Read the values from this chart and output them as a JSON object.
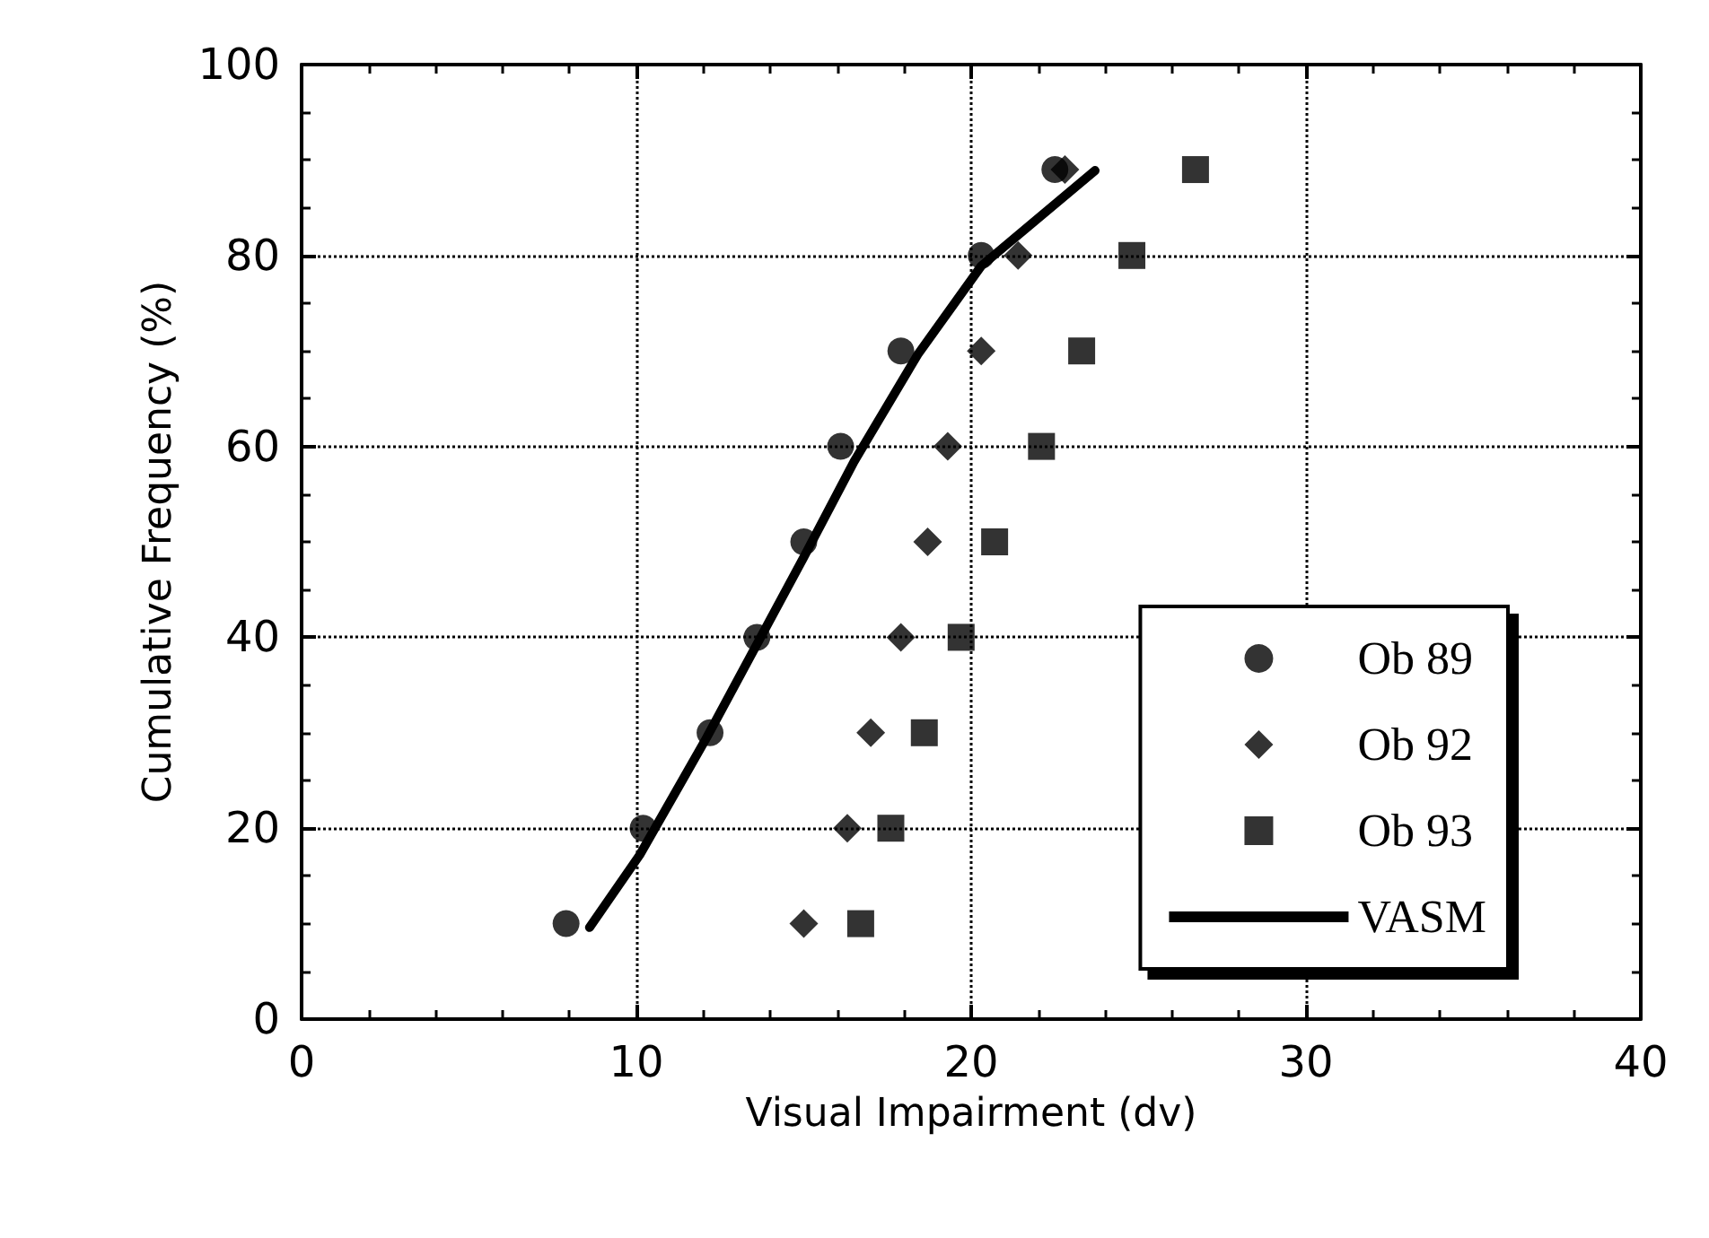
{
  "chart_data": {
    "type": "scatter",
    "xlabel": "Visual Impairment (dv)",
    "ylabel": "Cumulative Frequency (%)",
    "xlim": [
      0,
      40
    ],
    "xticks": [
      0,
      10,
      20,
      30,
      40
    ],
    "ylim": [
      0,
      100
    ],
    "yticks": [
      0,
      20,
      40,
      60,
      80,
      100
    ],
    "grid": true,
    "legend": "bottom right",
    "series": [
      {
        "name": "Ob 89",
        "color": "#000000",
        "marker": "circle",
        "x": [
          7.9,
          10.2,
          12.2,
          13.6,
          15.0,
          16.1,
          17.9,
          20.3,
          22.5
        ],
        "values": [
          10,
          20,
          30,
          40,
          50,
          60,
          70,
          80,
          89
        ]
      },
      {
        "name": "Ob 92",
        "color": "#000000",
        "marker": "diamond",
        "x": [
          15.0,
          16.3,
          17.0,
          17.9,
          18.7,
          19.3,
          20.3,
          21.4,
          22.8
        ],
        "values": [
          10,
          20,
          30,
          40,
          50,
          60,
          70,
          80,
          89
        ]
      },
      {
        "name": "Ob 93",
        "color": "#000000",
        "marker": "square",
        "x": [
          16.7,
          17.6,
          18.6,
          19.7,
          20.7,
          22.1,
          23.3,
          24.8,
          26.7
        ],
        "values": [
          10,
          20,
          30,
          40,
          50,
          60,
          70,
          80,
          89
        ]
      },
      {
        "name": "VASM",
        "type": "line",
        "color": "#000000",
        "marker": "none",
        "line_style": "solid",
        "x": [
          8.6,
          10.1,
          12.1,
          15.0,
          16.5,
          18.4,
          20.3,
          23.7
        ],
        "values": [
          9.6,
          17.2,
          29.5,
          48.4,
          58.4,
          69.6,
          78.9,
          88.9
        ]
      }
    ]
  }
}
